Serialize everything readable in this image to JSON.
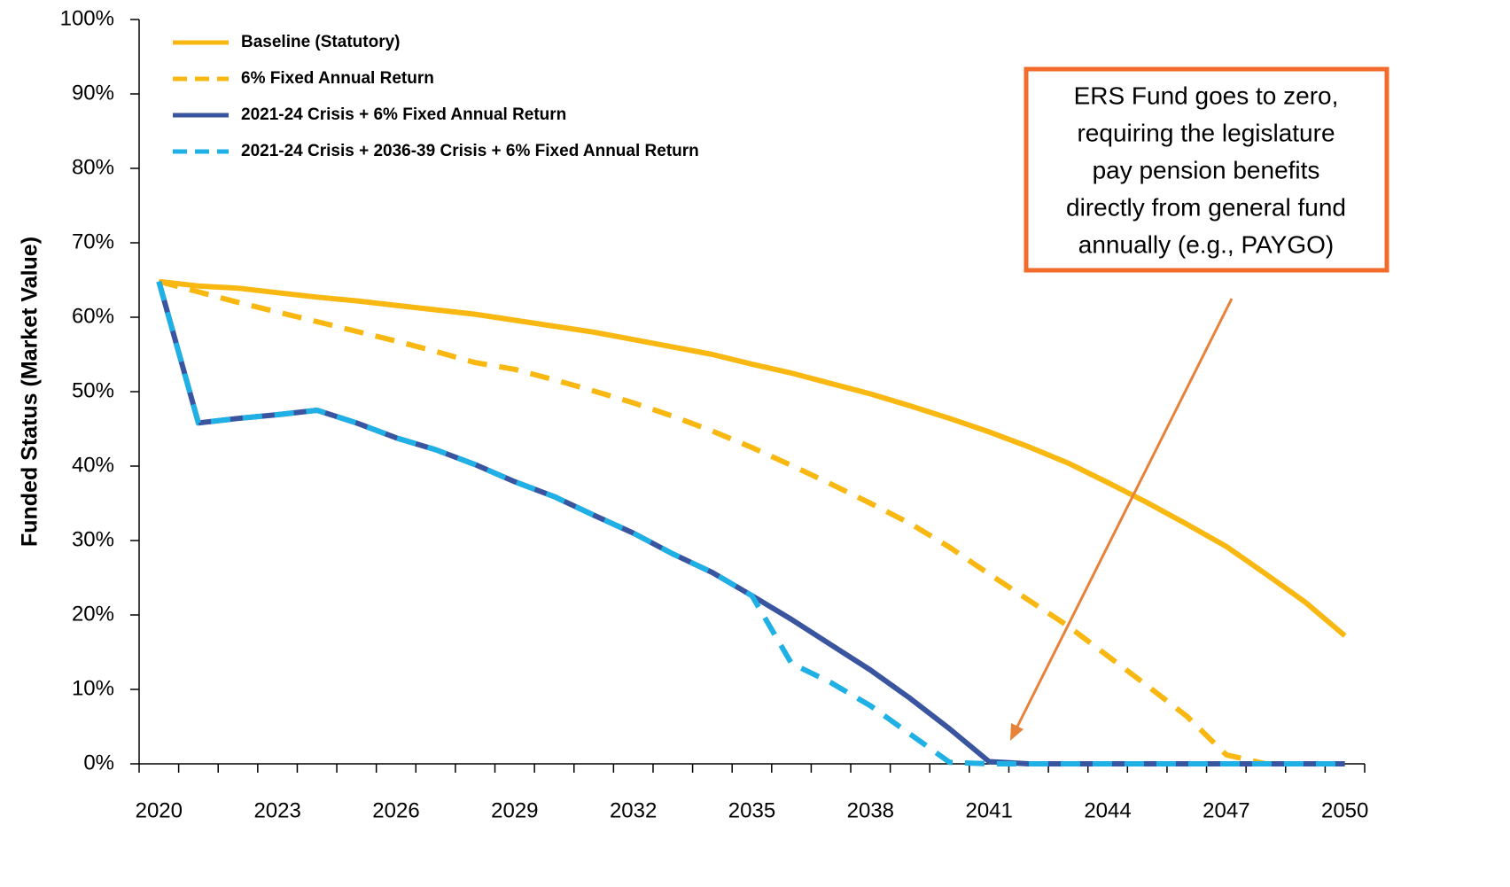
{
  "chart_data": {
    "type": "line",
    "ylabel": "Funded Status (Market Value)",
    "categories": [
      "2020",
      null,
      null,
      "2023",
      null,
      null,
      "2026",
      null,
      null,
      "2029",
      null,
      null,
      "2032",
      null,
      null,
      "2035",
      null,
      null,
      "2038",
      null,
      null,
      "2041",
      null,
      null,
      "2044",
      null,
      null,
      "2047",
      null,
      null,
      "2050"
    ],
    "ylim": [
      0,
      100
    ],
    "yticks": [
      {
        "value": 0,
        "label": "0%"
      },
      {
        "value": 10,
        "label": "10%"
      },
      {
        "value": 20,
        "label": "20%"
      },
      {
        "value": 30,
        "label": "30%"
      },
      {
        "value": 40,
        "label": "40%"
      },
      {
        "value": 50,
        "label": "50%"
      },
      {
        "value": 60,
        "label": "60%"
      },
      {
        "value": 70,
        "label": "70%"
      },
      {
        "value": 80,
        "label": "80%"
      },
      {
        "value": 90,
        "label": "90%"
      },
      {
        "value": 100,
        "label": "100%"
      }
    ],
    "legend": "upper left",
    "series": [
      {
        "name": "Baseline (Statutory)",
        "color": "#f9b811",
        "style": "solid",
        "values": [
          64.8,
          64.2,
          63.9,
          63.3,
          62.7,
          62.2,
          61.6,
          61.0,
          60.4,
          59.6,
          58.8,
          58.0,
          57.0,
          56.0,
          55.0,
          53.7,
          52.5,
          51.1,
          49.7,
          48.1,
          46.4,
          44.6,
          42.6,
          40.4,
          37.8,
          35.1,
          32.2,
          29.2,
          25.5,
          21.7,
          17.2
        ]
      },
      {
        "name": "6% Fixed Annual Return",
        "color": "#f9b811",
        "style": "dashed",
        "values": [
          64.8,
          63.4,
          62.0,
          60.7,
          59.4,
          58.1,
          56.8,
          55.4,
          53.9,
          53.0,
          51.6,
          50.1,
          48.5,
          46.7,
          44.7,
          42.5,
          40.1,
          37.6,
          35.0,
          32.3,
          29.1,
          25.5,
          22.0,
          18.5,
          14.5,
          10.5,
          6.4,
          1.2,
          0,
          0,
          0
        ]
      },
      {
        "name": "2021-24 Crisis + 6% Fixed Annual Return",
        "color": "#3a55a0",
        "style": "solid",
        "values": [
          64.8,
          45.8,
          46.4,
          46.9,
          47.5,
          45.8,
          43.8,
          42.2,
          40.2,
          37.9,
          35.9,
          33.4,
          31.0,
          28.2,
          25.7,
          22.6,
          19.4,
          16.0,
          12.6,
          8.8,
          4.7,
          0.3,
          0,
          0,
          0,
          0,
          0,
          0,
          0,
          0,
          0
        ]
      },
      {
        "name": "2021-24 Crisis + 2036-39 Crisis + 6% Fixed Annual Return",
        "color": "#1fb0e6",
        "style": "dashed",
        "values": [
          64.8,
          45.8,
          46.4,
          46.9,
          47.5,
          45.8,
          43.8,
          42.2,
          40.2,
          37.9,
          35.9,
          33.4,
          31.0,
          28.2,
          25.7,
          22.6,
          13.5,
          10.9,
          7.8,
          4.0,
          0.2,
          0,
          0,
          0,
          0,
          0,
          0,
          0,
          0,
          0,
          0
        ]
      }
    ],
    "annotation": [
      "ERS Fund goes to zero,",
      "requiring the legislature",
      "pay pension benefits",
      "directly from general fund",
      "annually (e.g., PAYGO)"
    ]
  }
}
